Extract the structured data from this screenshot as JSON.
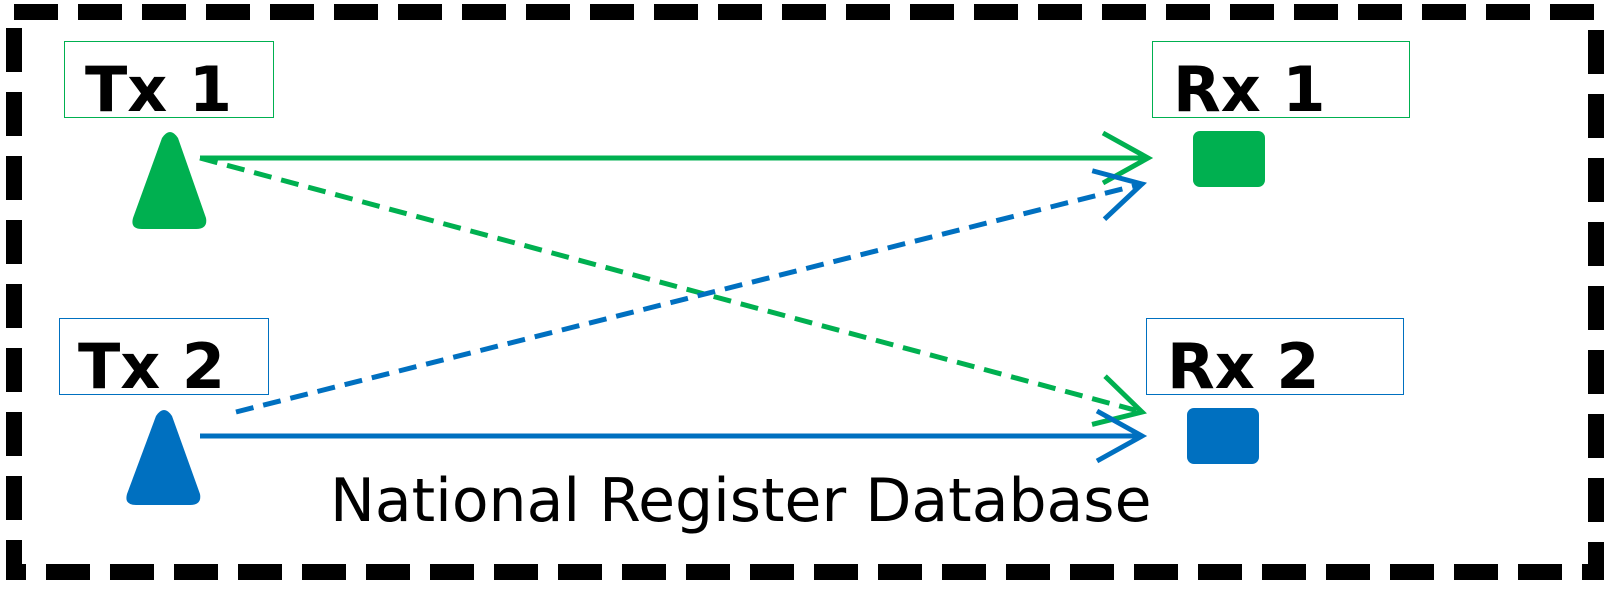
{
  "diagram": {
    "database_label": "National Register Database",
    "transmitters": [
      {
        "id": "tx1",
        "label": "Tx 1",
        "color": "#00b050"
      },
      {
        "id": "tx2",
        "label": "Tx 2",
        "color": "#0070c0"
      }
    ],
    "receivers": [
      {
        "id": "rx1",
        "label": "Rx 1",
        "color": "#00b050"
      },
      {
        "id": "rx2",
        "label": "Rx 2",
        "color": "#0070c0"
      }
    ],
    "links": [
      {
        "from": "Tx 1",
        "to": "Rx 1",
        "style": "solid",
        "color": "#00b050"
      },
      {
        "from": "Tx 1",
        "to": "Rx 2",
        "style": "dashed",
        "color": "#00b050"
      },
      {
        "from": "Tx 2",
        "to": "Rx 1",
        "style": "dashed",
        "color": "#0070c0"
      },
      {
        "from": "Tx 2",
        "to": "Rx 2",
        "style": "solid",
        "color": "#0070c0"
      }
    ]
  }
}
